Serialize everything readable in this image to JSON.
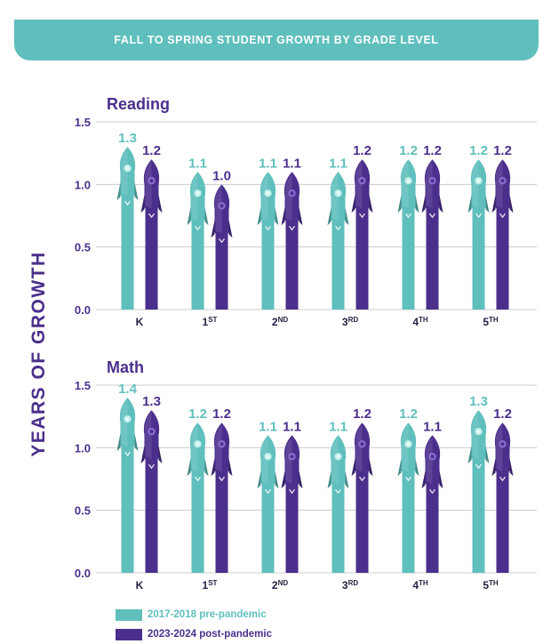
{
  "banner": {
    "title": "FALL TO SPRING STUDENT GROWTH BY GRADE LEVEL"
  },
  "ylabel": "YEARS OF GROWTH",
  "colors": {
    "teal": "#5fbfbd",
    "purple": "#4b2f8c",
    "gridline": "#cccccc"
  },
  "legend": [
    {
      "label": "2017-2018 pre-pandemic",
      "color": "#5fbfbd"
    },
    {
      "label": "2023-2024 post-pandemic",
      "color": "#4b2f8c"
    }
  ],
  "chart_data": [
    {
      "type": "bar",
      "title": "Reading",
      "categories": [
        {
          "base": "K",
          "sup": ""
        },
        {
          "base": "1",
          "sup": "ST"
        },
        {
          "base": "2",
          "sup": "ND"
        },
        {
          "base": "3",
          "sup": "RD"
        },
        {
          "base": "4",
          "sup": "TH"
        },
        {
          "base": "5",
          "sup": "TH"
        }
      ],
      "yticks": [
        "0.0",
        "0.5",
        "1.0",
        "1.5"
      ],
      "ylim": [
        0,
        1.5
      ],
      "series": [
        {
          "name": "2017-2018 pre-pandemic",
          "color": "#5fbfbd",
          "values": [
            1.3,
            1.1,
            1.1,
            1.1,
            1.2,
            1.2
          ],
          "labels": [
            "1.3",
            "1.1",
            "1.1",
            "1.1",
            "1.2",
            "1.2"
          ]
        },
        {
          "name": "2023-2024 post-pandemic",
          "color": "#4b2f8c",
          "values": [
            1.2,
            1.0,
            1.1,
            1.2,
            1.2,
            1.2
          ],
          "labels": [
            "1.2",
            "1.0",
            "1.1",
            "1.2",
            "1.2",
            "1.2"
          ]
        }
      ]
    },
    {
      "type": "bar",
      "title": "Math",
      "categories": [
        {
          "base": "K",
          "sup": ""
        },
        {
          "base": "1",
          "sup": "ST"
        },
        {
          "base": "2",
          "sup": "ND"
        },
        {
          "base": "3",
          "sup": "RD"
        },
        {
          "base": "4",
          "sup": "TH"
        },
        {
          "base": "5",
          "sup": "TH"
        }
      ],
      "yticks": [
        "0.0",
        "0.5",
        "1.0",
        "1.5"
      ],
      "ylim": [
        0,
        1.5
      ],
      "series": [
        {
          "name": "2017-2018 pre-pandemic",
          "color": "#5fbfbd",
          "values": [
            1.4,
            1.2,
            1.1,
            1.1,
            1.2,
            1.3
          ],
          "labels": [
            "1.4",
            "1.2",
            "1.1",
            "1.1",
            "1.2",
            "1.3"
          ]
        },
        {
          "name": "2023-2024 post-pandemic",
          "color": "#4b2f8c",
          "values": [
            1.3,
            1.2,
            1.1,
            1.2,
            1.1,
            1.2
          ],
          "labels": [
            "1.3",
            "1.2",
            "1.1",
            "1.2",
            "1.1",
            "1.2"
          ]
        }
      ]
    }
  ]
}
